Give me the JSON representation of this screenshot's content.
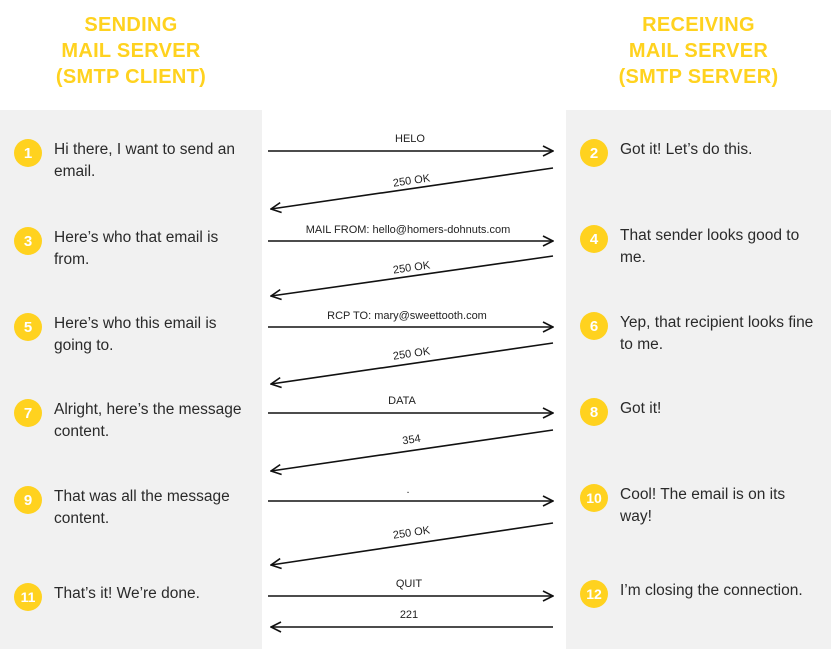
{
  "headers": {
    "left": [
      "SENDING",
      "MAIL SERVER",
      "(SMTP CLIENT)"
    ],
    "right": [
      "RECEIVING",
      "MAIL SERVER",
      "(SMTP SERVER)"
    ]
  },
  "steps": [
    {
      "num": "1",
      "side": "left",
      "text": "Hi there, I want to send an email."
    },
    {
      "num": "2",
      "side": "right",
      "text": "Got it! Let’s do this."
    },
    {
      "num": "3",
      "side": "left",
      "text": "Here’s who that email is from."
    },
    {
      "num": "4",
      "side": "right",
      "text": "That sender looks good to me."
    },
    {
      "num": "5",
      "side": "left",
      "text": "Here’s who this email is going to."
    },
    {
      "num": "6",
      "side": "right",
      "text": "Yep, that recipient looks fine to me."
    },
    {
      "num": "7",
      "side": "left",
      "text": "Alright, here’s the message content."
    },
    {
      "num": "8",
      "side": "right",
      "text": "Got it!"
    },
    {
      "num": "9",
      "side": "left",
      "text": "That was all the message content."
    },
    {
      "num": "10",
      "side": "right",
      "text": "Cool! The email is on its way!"
    },
    {
      "num": "11",
      "side": "left",
      "text": "That’s it! We’re done."
    },
    {
      "num": "12",
      "side": "right",
      "text": "I’m closing the connection."
    }
  ],
  "messages": [
    {
      "label": "HELO",
      "direction": "client-to-server"
    },
    {
      "label": "250 OK",
      "direction": "server-to-client"
    },
    {
      "label": "MAIL FROM: hello@homers-dohnuts.com",
      "direction": "client-to-server"
    },
    {
      "label": "250 OK",
      "direction": "server-to-client"
    },
    {
      "label": "RCP TO: mary@sweettooth.com",
      "direction": "client-to-server"
    },
    {
      "label": "250 OK",
      "direction": "server-to-client"
    },
    {
      "label": "DATA",
      "direction": "client-to-server"
    },
    {
      "label": "354",
      "direction": "server-to-client"
    },
    {
      "label": ".",
      "direction": "client-to-server"
    },
    {
      "label": "250 OK",
      "direction": "server-to-client"
    },
    {
      "label": "QUIT",
      "direction": "client-to-server"
    },
    {
      "label": "221",
      "direction": "server-to-client"
    }
  ],
  "colors": {
    "accent": "#ffd21f",
    "panel": "#f1f1f1",
    "arrow": "#111111"
  }
}
